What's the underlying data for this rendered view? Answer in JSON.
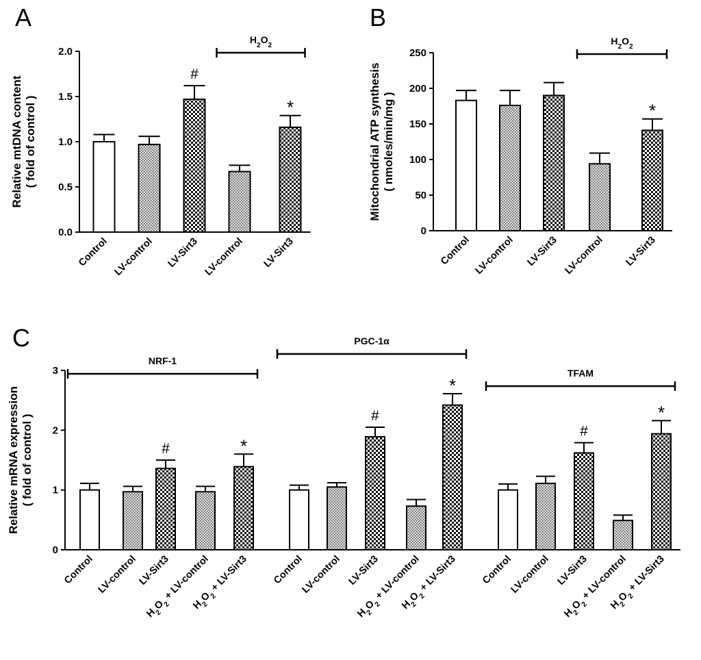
{
  "chart_data": [
    {
      "panel": "A",
      "type": "bar",
      "ylabel_lines": [
        "Relative mtDNA content",
        "( fold of control )"
      ],
      "ylim": [
        0,
        2.0
      ],
      "yticks": [
        0.0,
        0.5,
        1.0,
        1.5,
        2.0
      ],
      "ytick_labels": [
        "0.0",
        "0.5",
        "1.0",
        "1.5",
        "2.0"
      ],
      "categories": [
        "Control",
        "LV-control",
        "LV-Sirt3",
        "LV-control",
        "LV-Sirt3"
      ],
      "values": [
        1.0,
        0.97,
        1.47,
        0.67,
        1.16
      ],
      "errors": [
        0.08,
        0.09,
        0.15,
        0.07,
        0.13
      ],
      "patterns": [
        "open",
        "stipple",
        "checker",
        "stipple",
        "checker"
      ],
      "significance": [
        "",
        "",
        "#",
        "",
        "*"
      ],
      "brackets": [
        {
          "label": "H₂O₂",
          "from": 3,
          "to": 4
        }
      ]
    },
    {
      "panel": "B",
      "type": "bar",
      "ylabel_lines": [
        "Mitochondrial ATP synthesis",
        "( nmoles/min/mg )"
      ],
      "ylim": [
        0,
        250
      ],
      "yticks": [
        0,
        50,
        100,
        150,
        200,
        250
      ],
      "ytick_labels": [
        "0",
        "50",
        "100",
        "150",
        "200",
        "250"
      ],
      "categories": [
        "Control",
        "LV-control",
        "LV-Sirt3",
        "LV-control",
        "LV-Sirt3"
      ],
      "values": [
        183,
        176,
        190,
        94,
        141
      ],
      "errors": [
        14,
        21,
        18,
        15,
        16
      ],
      "patterns": [
        "open",
        "stipple",
        "checker",
        "stipple",
        "checker"
      ],
      "significance": [
        "",
        "",
        "",
        "",
        "*"
      ],
      "brackets": [
        {
          "label": "H₂O₂",
          "from": 3,
          "to": 4
        }
      ]
    },
    {
      "panel": "C",
      "type": "bar",
      "ylabel_lines": [
        "Relative mRNA expression",
        "( fold of control )"
      ],
      "ylim": [
        0,
        3
      ],
      "yticks": [
        0,
        1,
        2,
        3
      ],
      "ytick_labels": [
        "0",
        "1",
        "2",
        "3"
      ],
      "categories": [
        "Control",
        "LV-control",
        "LV-Sirt3",
        "H₂O₂ + LV-control",
        "H₂O₂ + LV-Sirt3",
        "Control",
        "LV-control",
        "LV-Sirt3",
        "H₂O₂ + LV-control",
        "H₂O₂ + LV-Sirt3",
        "Control",
        "LV-control",
        "LV-Sirt3",
        "H₂O₂ + LV-control",
        "H₂O₂ + LV-Sirt3"
      ],
      "values": [
        1.0,
        0.97,
        1.36,
        0.97,
        1.39,
        1.0,
        1.05,
        1.89,
        0.73,
        2.42,
        1.0,
        1.11,
        1.62,
        0.49,
        1.94
      ],
      "errors": [
        0.11,
        0.09,
        0.14,
        0.09,
        0.21,
        0.08,
        0.07,
        0.16,
        0.11,
        0.19,
        0.1,
        0.12,
        0.17,
        0.09,
        0.22
      ],
      "patterns": [
        "open",
        "stipple",
        "checker",
        "stipple",
        "checker",
        "open",
        "stipple",
        "checker",
        "stipple",
        "checker",
        "open",
        "stipple",
        "checker",
        "stipple",
        "checker"
      ],
      "significance": [
        "",
        "",
        "#",
        "",
        "*",
        "",
        "",
        "#",
        "",
        "*",
        "",
        "",
        "#",
        "",
        "*"
      ],
      "brackets": [
        {
          "label": "NRF-1",
          "from": 0,
          "to": 4
        },
        {
          "label": "PGC-1α",
          "from": 5,
          "to": 9
        },
        {
          "label": "TFAM",
          "from": 10,
          "to": 14
        }
      ]
    }
  ]
}
